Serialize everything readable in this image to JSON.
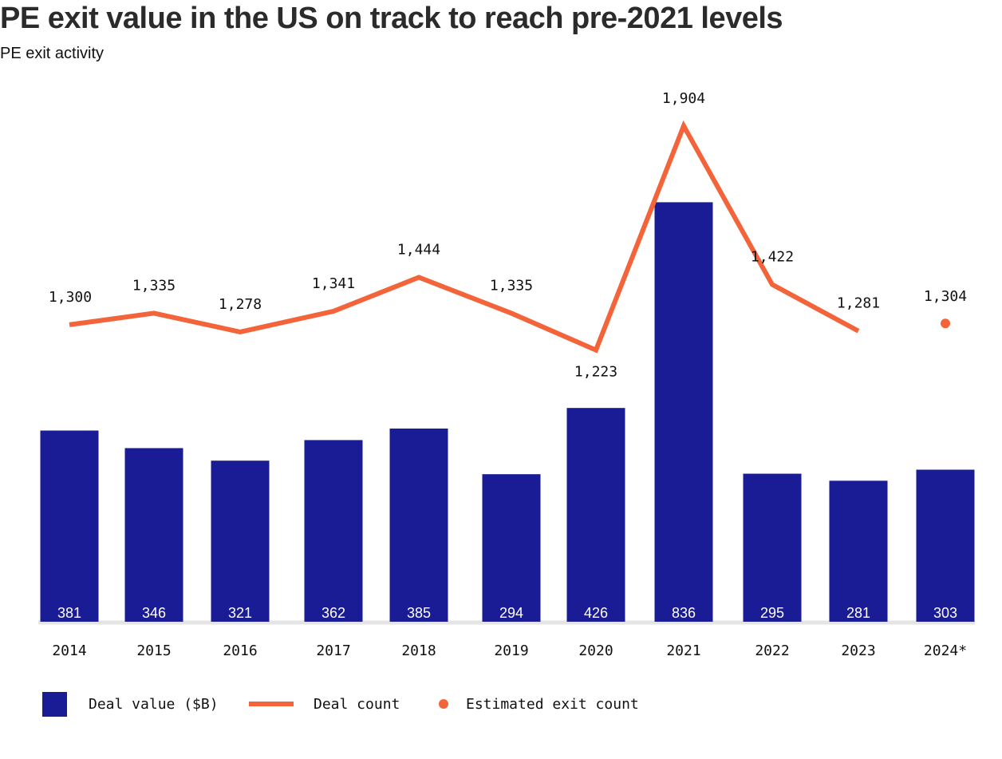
{
  "title": "PE exit value in the US on track to reach pre-2021 levels",
  "subtitle": "PE exit activity",
  "chart_data": {
    "type": "bar",
    "categories": [
      "2014",
      "2015",
      "2016",
      "2017",
      "2018",
      "2019",
      "2020",
      "2021",
      "2022",
      "2023",
      "2024*"
    ],
    "series": [
      {
        "name": "Deal value ($B)",
        "kind": "bar",
        "color": "#1a1c96",
        "values": [
          381,
          346,
          321,
          362,
          385,
          294,
          426,
          836,
          295,
          281,
          303
        ],
        "labels": [
          "381",
          "346",
          "321",
          "362",
          "385",
          "294",
          "426",
          "836",
          "295",
          "281",
          "303"
        ]
      },
      {
        "name": "Deal count",
        "kind": "line",
        "color": "#f4643a",
        "values": [
          1300,
          1335,
          1278,
          1341,
          1444,
          1335,
          1223,
          1904,
          1422,
          1281,
          null
        ],
        "labels": [
          "1,300",
          "1,335",
          "1,278",
          "1,341",
          "1,444",
          "1,335",
          "1,223",
          "1,904",
          "1,422",
          "1,281",
          ""
        ]
      },
      {
        "name": "Estimated exit count",
        "kind": "point",
        "color": "#f4643a",
        "values": [
          null,
          null,
          null,
          null,
          null,
          null,
          null,
          null,
          null,
          null,
          1304
        ],
        "labels": [
          "",
          "",
          "",
          "",
          "",
          "",
          "",
          "",
          "",
          "",
          "1,304"
        ]
      }
    ],
    "bar_axis": [
      0,
      900
    ],
    "count_axis": [
      0,
      1904
    ],
    "legend_position": "bottom-left",
    "baseline_color": "#e4e4e4",
    "text_color": "#111111"
  }
}
